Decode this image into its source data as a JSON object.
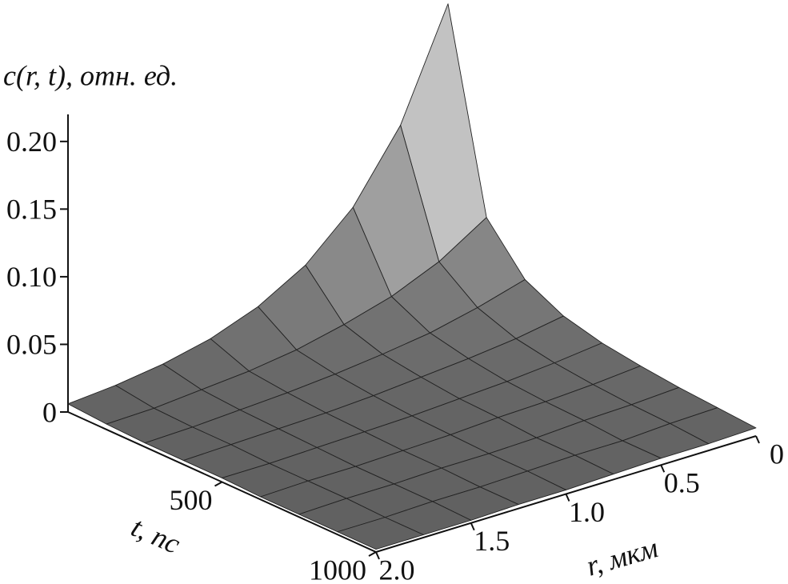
{
  "chart_data": {
    "type": "surface",
    "z_label": "c(r, t), отн. ед.",
    "t_label": "t, пс",
    "r_label": "r, мкм",
    "r": [
      0,
      0.25,
      0.5,
      0.75,
      1,
      1.25,
      1.5,
      1.75,
      2
    ],
    "t": [
      0,
      125,
      250,
      375,
      500,
      625,
      750,
      875,
      1000
    ],
    "z": [
      [
        0.216,
        0.137,
        0.087,
        0.055,
        0.035,
        0.022,
        0.014,
        0.009,
        0.006
      ],
      [
        0.071,
        0.049,
        0.034,
        0.024,
        0.016,
        0.011,
        0.008,
        0.005,
        0.004
      ],
      [
        0.038,
        0.028,
        0.02,
        0.015,
        0.011,
        0.008,
        0.006,
        0.004,
        0.003
      ],
      [
        0.024,
        0.018,
        0.014,
        0.011,
        0.008,
        0.006,
        0.005,
        0.004,
        0.003
      ],
      [
        0.017,
        0.013,
        0.01,
        0.008,
        0.006,
        0.005,
        0.004,
        0.003,
        0.003
      ],
      [
        0.013,
        0.01,
        0.008,
        0.007,
        0.005,
        0.004,
        0.003,
        0.003,
        0.002
      ],
      [
        0.01,
        0.008,
        0.007,
        0.005,
        0.004,
        0.004,
        0.003,
        0.003,
        0.002
      ],
      [
        0.008,
        0.007,
        0.005,
        0.005,
        0.004,
        0.003,
        0.003,
        0.002,
        0.002
      ],
      [
        0.006,
        0.005,
        0.005,
        0.004,
        0.003,
        0.003,
        0.002,
        0.002,
        0.002
      ]
    ],
    "rlim": [
      0,
      2
    ],
    "tlim": [
      0,
      1000
    ],
    "zlim": [
      0,
      0.22
    ],
    "rticks": [
      0,
      0.5,
      {
        "value": 1,
        "label": "1.0"
      },
      1.5,
      {
        "value": 2,
        "label": "2.0"
      }
    ],
    "tticks": [
      500,
      1000
    ],
    "zticks": [
      0,
      0.05,
      {
        "value": 0.1,
        "label": "0.10"
      },
      0.15,
      {
        "value": 0.2,
        "label": "0.20"
      }
    ]
  }
}
